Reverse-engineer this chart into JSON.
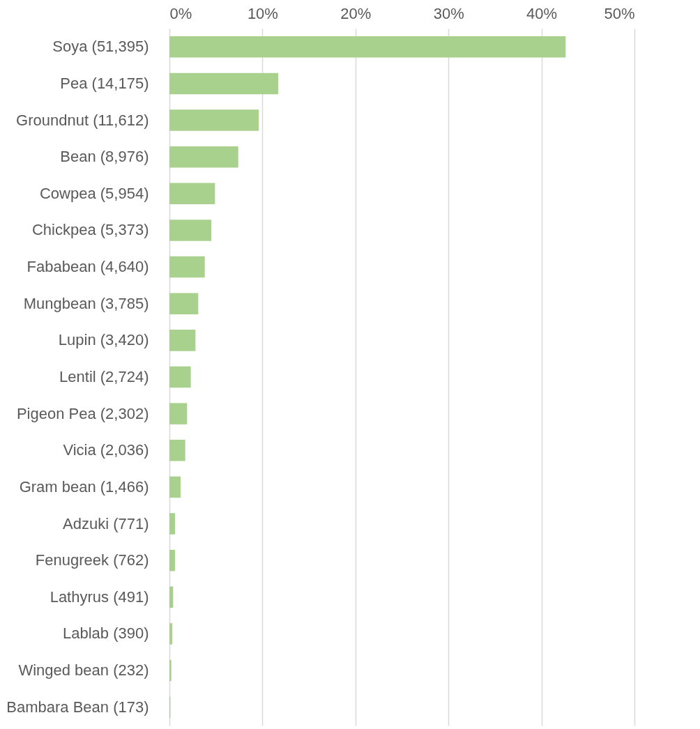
{
  "chart_data": {
    "type": "bar",
    "orientation": "horizontal",
    "categories": [
      "Soya (51,395)",
      "Pea (14,175)",
      "Groundnut (11,612)",
      "Bean (8,976)",
      "Cowpea (5,954)",
      "Chickpea (5,373)",
      "Fababean (4,640)",
      "Mungbean (3,785)",
      "Lupin (3,420)",
      "Lentil (2,724)",
      "Pigeon Pea (2,302)",
      "Vicia (2,036)",
      "Gram bean (1,466)",
      "Adzuki (771)",
      "Fenugreek (762)",
      "Lathyrus (491)",
      "Lablab (390)",
      "Winged bean (232)",
      "Bambara Bean (173)"
    ],
    "values": [
      42.6,
      11.7,
      9.6,
      7.4,
      4.9,
      4.5,
      3.8,
      3.1,
      2.8,
      2.3,
      1.9,
      1.7,
      1.2,
      0.6,
      0.6,
      0.4,
      0.3,
      0.2,
      0.1
    ],
    "color": "#a9d18e",
    "xlim": [
      0,
      50
    ],
    "xticks": [
      {
        "value": 0,
        "label": "0%"
      },
      {
        "value": 10,
        "label": "10%"
      },
      {
        "value": 20,
        "label": "20%"
      },
      {
        "value": 30,
        "label": "30%"
      },
      {
        "value": 40,
        "label": "40%"
      },
      {
        "value": 50,
        "label": "50%"
      }
    ],
    "grid": "x"
  }
}
